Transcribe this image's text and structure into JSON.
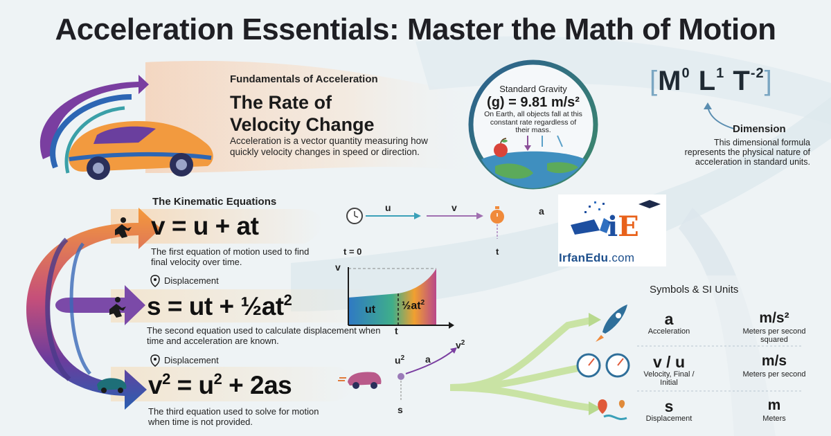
{
  "title": "Acceleration Essentials: Master the Math of Motion",
  "fundamentals": {
    "kicker": "Fundamentals of Acceleration",
    "heading_line1": "The Rate of",
    "heading_line2": "Velocity Change",
    "description": "Acceleration is a vector quantity measuring how quickly velocity changes in speed or direction."
  },
  "gravity": {
    "title": "Standard Gravity",
    "value": "(g) = 9.81 m/s²",
    "description": "On Earth, all objects fall at this constant rate regardless of their mass."
  },
  "dimension": {
    "M": "M",
    "M_exp": "0",
    "L": "L",
    "L_exp": "1",
    "T": "T",
    "T_exp": "-2",
    "label": "Dimension",
    "description": "This dimensional formula represents the physical nature of acceleration in standard units."
  },
  "kinematics": {
    "title": "The Kinematic Equations",
    "eq1": "v = u + at",
    "eq1_desc": "The first equation of motion used to find final velocity over time.",
    "eq2_main": "s = ut + ½at",
    "eq2_exp": "2",
    "eq2_label": "Displacement",
    "eq2_desc": "The second equation used to calculate displacement when time and acceleration are known.",
    "eq3_v": "v",
    "eq3_mid": " = u",
    "eq3_end": " + 2as",
    "eq3_exp1": "2",
    "eq3_exp2": "2",
    "eq3_label": "Displacement",
    "eq3_desc": "The third equation used to solve for motion when time is not provided."
  },
  "diagram1": {
    "u": "u",
    "v": "v",
    "a": "a",
    "t0": "t = 0",
    "t": "t"
  },
  "diagram2": {
    "v_axis": "v",
    "t_axis": "t",
    "area1": "ut",
    "area2_main": "½at",
    "area2_exp": "2"
  },
  "diagram3": {
    "u_main": "u",
    "u_exp": "2",
    "a": "a",
    "v_main": "v",
    "v_exp": "2",
    "s": "s"
  },
  "logo": {
    "brand": "IrfanEdu",
    "domain": ".com"
  },
  "symbols": {
    "header": "Symbols & SI Units",
    "rows": [
      {
        "symbol": "a",
        "name": "Acceleration",
        "unit": "m/s²",
        "unit_desc": "Meters per second squared",
        "icon": "rocket-icon"
      },
      {
        "symbol": "v / u",
        "name": "Velocity, Final / Initial",
        "unit": "m/s",
        "unit_desc": "Meters per second",
        "icon": "speedometer-icon"
      },
      {
        "symbol": "s",
        "name": "Displacement",
        "unit": "m",
        "unit_desc": "Meters",
        "icon": "map-pin-icon"
      }
    ]
  },
  "colors": {
    "orange": "#f28a2e",
    "purple": "#7a3ea0",
    "blue": "#2d66b4",
    "teal": "#3aa0a8",
    "green_band": "#c9e3a4"
  }
}
